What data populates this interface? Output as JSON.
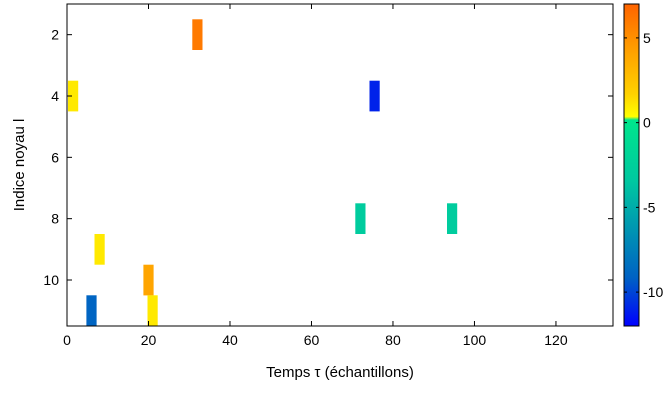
{
  "chart_data": {
    "type": "heatmap",
    "xlabel": "Temps τ (échantillons)",
    "ylabel": "Indice noyau l",
    "xlim": [
      0,
      134
    ],
    "ylim": [
      1,
      11.5
    ],
    "y_reversed": true,
    "x_ticks": [
      0,
      20,
      40,
      60,
      80,
      100,
      120
    ],
    "y_ticks": [
      2,
      4,
      6,
      8,
      10
    ],
    "colorbar": {
      "range": [
        -12,
        7
      ],
      "ticks": [
        5,
        0,
        -5,
        -10
      ],
      "tick_labels": [
        "5",
        "0",
        "-5",
        "-10"
      ],
      "colors": [
        "#0000ff",
        "#0062c4",
        "#00c8a0",
        "#00e68c",
        "#ffff00",
        "#ffd200",
        "#ffa200",
        "#ff6400"
      ],
      "stops": [
        0,
        0.15,
        0.45,
        0.64,
        0.65,
        0.72,
        0.85,
        1
      ]
    },
    "cell_width": 2.5,
    "cells": [
      {
        "x": 32,
        "y": 2,
        "value": 6
      },
      {
        "x": 1.5,
        "y": 4,
        "value": 1
      },
      {
        "x": 75.5,
        "y": 4,
        "value": -11
      },
      {
        "x": 72,
        "y": 8,
        "value": -3
      },
      {
        "x": 94.5,
        "y": 8,
        "value": -3
      },
      {
        "x": 8,
        "y": 9,
        "value": 1
      },
      {
        "x": 20,
        "y": 10,
        "value": 4
      },
      {
        "x": 6,
        "y": 11,
        "value": -9
      },
      {
        "x": 21,
        "y": 11,
        "value": 1
      }
    ]
  }
}
